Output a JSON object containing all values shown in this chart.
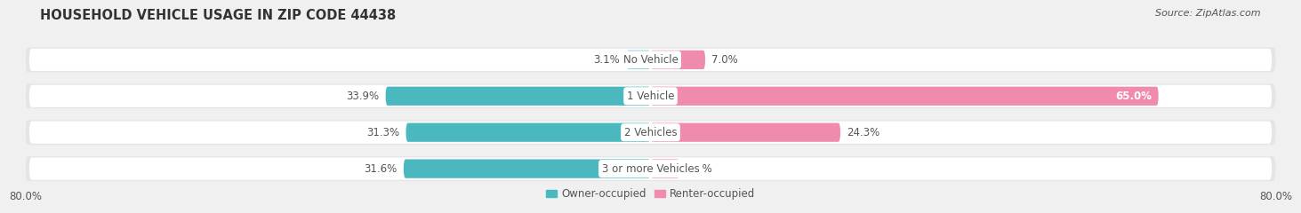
{
  "title": "HOUSEHOLD VEHICLE USAGE IN ZIP CODE 44438",
  "source": "Source: ZipAtlas.com",
  "categories": [
    "No Vehicle",
    "1 Vehicle",
    "2 Vehicles",
    "3 or more Vehicles"
  ],
  "owner_values": [
    3.1,
    33.9,
    31.3,
    31.6
  ],
  "renter_values": [
    7.0,
    65.0,
    24.3,
    3.7
  ],
  "owner_color": "#4BB8C0",
  "renter_color": "#F08BAD",
  "bar_height": 0.52,
  "xlim": [
    -80,
    80
  ],
  "xticklabels_left": "80.0%",
  "xticklabels_right": "80.0%",
  "background_color": "#f0f0f0",
  "row_bg_color": "#e5e5e5",
  "row_inner_color": "#ffffff",
  "label_color": "#555555",
  "title_color": "#333333",
  "legend_labels": [
    "Owner-occupied",
    "Renter-occupied"
  ],
  "center_label_color": "#555555",
  "value_fontsize": 8.5,
  "title_fontsize": 10.5,
  "source_fontsize": 8,
  "legend_fontsize": 8.5,
  "category_fontsize": 8.5,
  "row_padding": 0.08
}
